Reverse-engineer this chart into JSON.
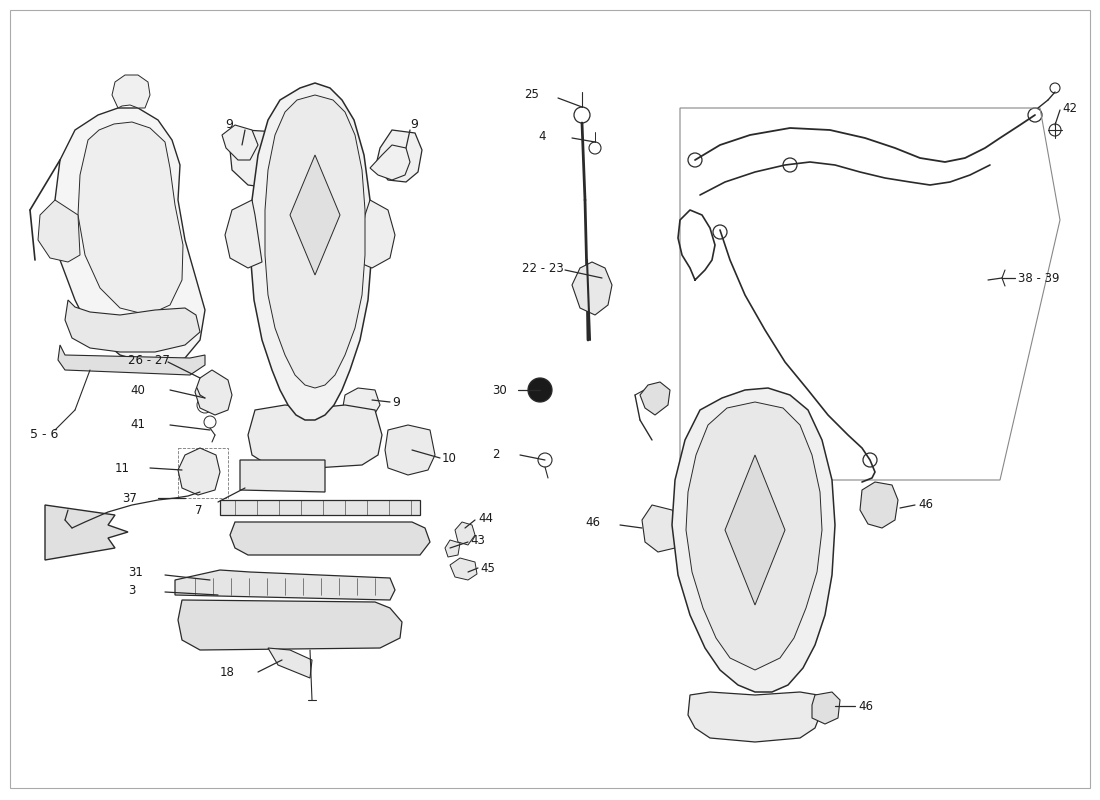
{
  "background_color": "#ffffff",
  "line_color": "#2a2a2a",
  "fig_width": 11.0,
  "fig_height": 8.0,
  "dpi": 100,
  "border_color": "#aaaaaa",
  "label_fontsize": 8.5,
  "label_color": "#1a1a1a"
}
